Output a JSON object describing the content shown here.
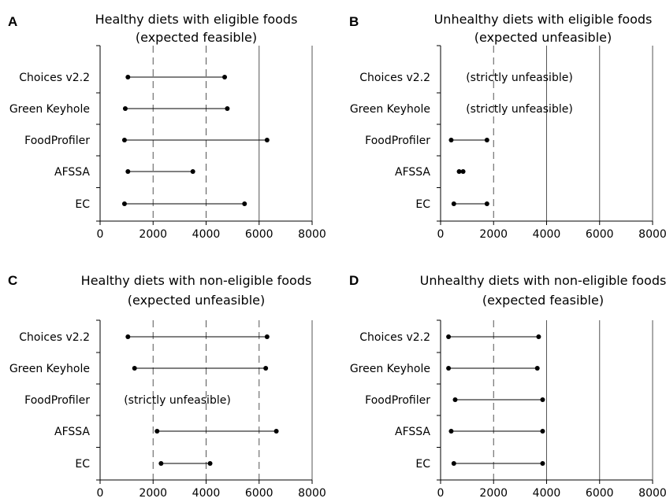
{
  "chart_data": [
    {
      "panel": "A",
      "type": "range",
      "title": [
        "Healthy diets with eligible foods",
        "(expected feasible)"
      ],
      "categories": [
        "Choices v2.2",
        "Green Keyhole",
        "FoodProfiler",
        "AFSSA",
        "EC"
      ],
      "ranges": [
        [
          1050,
          4700
        ],
        [
          950,
          4800
        ],
        [
          920,
          6300
        ],
        [
          1050,
          3500
        ],
        [
          920,
          5450
        ]
      ],
      "notes": [],
      "xlim": [
        0,
        8000
      ],
      "xticks": [
        "0",
        "2000",
        "4000",
        "6000",
        "8000"
      ],
      "dashed_grid": [
        2000,
        4000
      ],
      "solid_grid": [
        6000,
        8000
      ]
    },
    {
      "panel": "B",
      "type": "range",
      "title": [
        "Unhealthy diets with eligible foods",
        "(expected unfeasible)"
      ],
      "categories": [
        "Choices v2.2",
        "Green Keyhole",
        "FoodProfiler",
        "AFSSA",
        "EC"
      ],
      "ranges": [
        null,
        null,
        [
          400,
          1750
        ],
        [
          700,
          850
        ],
        [
          500,
          1750
        ]
      ],
      "notes": [
        {
          "row": 0,
          "text": "(strictly unfeasible)"
        },
        {
          "row": 1,
          "text": "(strictly unfeasible)"
        }
      ],
      "xlim": [
        0,
        8000
      ],
      "xticks": [
        "0",
        "2000",
        "4000",
        "6000",
        "8000"
      ],
      "dashed_grid": [
        2000
      ],
      "solid_grid": [
        4000,
        6000,
        8000
      ]
    },
    {
      "panel": "C",
      "type": "range",
      "title": [
        "Healthy diets with non-eligible foods",
        "(expected unfeasible)"
      ],
      "categories": [
        "Choices v2.2",
        "Green Keyhole",
        "FoodProfiler",
        "AFSSA",
        "EC"
      ],
      "ranges": [
        [
          1050,
          6300
        ],
        [
          1300,
          6250
        ],
        null,
        [
          2150,
          6650
        ],
        [
          2300,
          4150
        ]
      ],
      "notes": [
        {
          "row": 2,
          "text": "(strictly unfeasible)"
        }
      ],
      "xlim": [
        0,
        8000
      ],
      "xticks": [
        "0",
        "2000",
        "4000",
        "6000",
        "8000"
      ],
      "dashed_grid": [
        2000,
        4000,
        6000
      ],
      "solid_grid": [
        8000
      ]
    },
    {
      "panel": "D",
      "type": "range",
      "title": [
        "Unhealthy diets with non-eligible foods",
        "(expected feasible)"
      ],
      "categories": [
        "Choices v2.2",
        "Green Keyhole",
        "FoodProfiler",
        "AFSSA",
        "EC"
      ],
      "ranges": [
        [
          300,
          3700
        ],
        [
          300,
          3650
        ],
        [
          550,
          3850
        ],
        [
          400,
          3850
        ],
        [
          500,
          3850
        ]
      ],
      "notes": [],
      "xlim": [
        0,
        8000
      ],
      "xticks": [
        "0",
        "2000",
        "4000",
        "6000",
        "8000"
      ],
      "dashed_grid": [
        2000
      ],
      "solid_grid": [
        4000,
        6000,
        8000
      ]
    }
  ]
}
